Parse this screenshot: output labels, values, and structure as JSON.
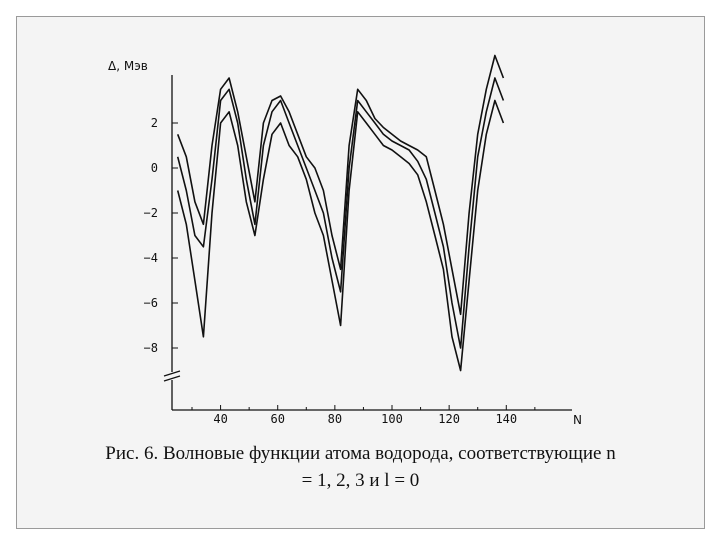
{
  "caption": {
    "line1": "Рис. 6. Волновые функции атома водорода, соответствующие n",
    "line2": "= 1, 2, 3 и l = 0"
  },
  "chart_data": {
    "type": "line",
    "xlabel": "N",
    "ylabel": "Δ, Мэв",
    "xlim": [
      23,
      163
    ],
    "ylim": [
      -9.5,
      4.5
    ],
    "x_ticks": [
      {
        "value": 40,
        "label": "40"
      },
      {
        "value": 60,
        "label": "60"
      },
      {
        "value": 80,
        "label": "80"
      },
      {
        "value": 100,
        "label": "100"
      },
      {
        "value": 120,
        "label": "120"
      },
      {
        "value": 140,
        "label": "140"
      }
    ],
    "y_ticks": [
      {
        "value": 2,
        "label": "2"
      },
      {
        "value": 0,
        "label": "0"
      },
      {
        "value": -2,
        "label": "−2"
      },
      {
        "value": -4,
        "label": "−4"
      },
      {
        "value": -6,
        "label": "−6"
      },
      {
        "value": -8,
        "label": "−8"
      }
    ],
    "axis_break": true,
    "grid": false,
    "color": "#111111",
    "series": [
      {
        "x": [
          25,
          28,
          31,
          34,
          37,
          40,
          43,
          46,
          49,
          52,
          55,
          58,
          61,
          64,
          67,
          70,
          73,
          76,
          79,
          82,
          85,
          88,
          91,
          94,
          97,
          100,
          103,
          106,
          109,
          112,
          115,
          118,
          121,
          124,
          127,
          130,
          133,
          136,
          139
        ],
        "y": [
          1.5,
          0.5,
          -1.5,
          -2.5,
          1.0,
          3.5,
          4.0,
          2.5,
          0.5,
          -1.5,
          2.0,
          3.0,
          3.2,
          2.5,
          1.5,
          0.5,
          0.0,
          -1.0,
          -3.0,
          -4.5,
          1.0,
          3.5,
          3.0,
          2.2,
          1.8,
          1.5,
          1.2,
          1.0,
          0.8,
          0.5,
          -1.0,
          -2.5,
          -4.5,
          -6.5,
          -2.0,
          1.5,
          3.5,
          5.0,
          4.0
        ]
      },
      {
        "x": [
          25,
          28,
          31,
          34,
          37,
          40,
          43,
          46,
          49,
          52,
          55,
          58,
          61,
          64,
          67,
          70,
          73,
          76,
          79,
          82,
          85,
          88,
          91,
          94,
          97,
          100,
          103,
          106,
          109,
          112,
          115,
          118,
          121,
          124,
          127,
          130,
          133,
          136,
          139
        ],
        "y": [
          0.5,
          -1.0,
          -3.0,
          -3.5,
          -0.5,
          3.0,
          3.5,
          2.0,
          -0.5,
          -2.5,
          1.0,
          2.5,
          3.0,
          2.0,
          1.0,
          0.0,
          -1.0,
          -2.0,
          -4.0,
          -5.5,
          0.0,
          3.0,
          2.5,
          2.0,
          1.5,
          1.2,
          1.0,
          0.8,
          0.3,
          -0.5,
          -2.0,
          -3.5,
          -6.0,
          -8.0,
          -3.5,
          0.5,
          2.5,
          4.0,
          3.0
        ]
      },
      {
        "x": [
          25,
          28,
          31,
          34,
          37,
          40,
          43,
          46,
          49,
          52,
          55,
          58,
          61,
          64,
          67,
          70,
          73,
          76,
          79,
          82,
          85,
          88,
          91,
          94,
          97,
          100,
          103,
          106,
          109,
          112,
          115,
          118,
          121,
          124,
          127,
          130,
          133,
          136,
          139
        ],
        "y": [
          -1.0,
          -2.5,
          -5.0,
          -7.5,
          -2.0,
          2.0,
          2.5,
          1.0,
          -1.5,
          -3.0,
          -0.5,
          1.5,
          2.0,
          1.0,
          0.5,
          -0.5,
          -2.0,
          -3.0,
          -5.0,
          -7.0,
          -1.0,
          2.5,
          2.0,
          1.5,
          1.0,
          0.8,
          0.5,
          0.2,
          -0.3,
          -1.5,
          -3.0,
          -4.5,
          -7.5,
          -9.0,
          -5.0,
          -1.0,
          1.5,
          3.0,
          2.0
        ]
      }
    ]
  }
}
